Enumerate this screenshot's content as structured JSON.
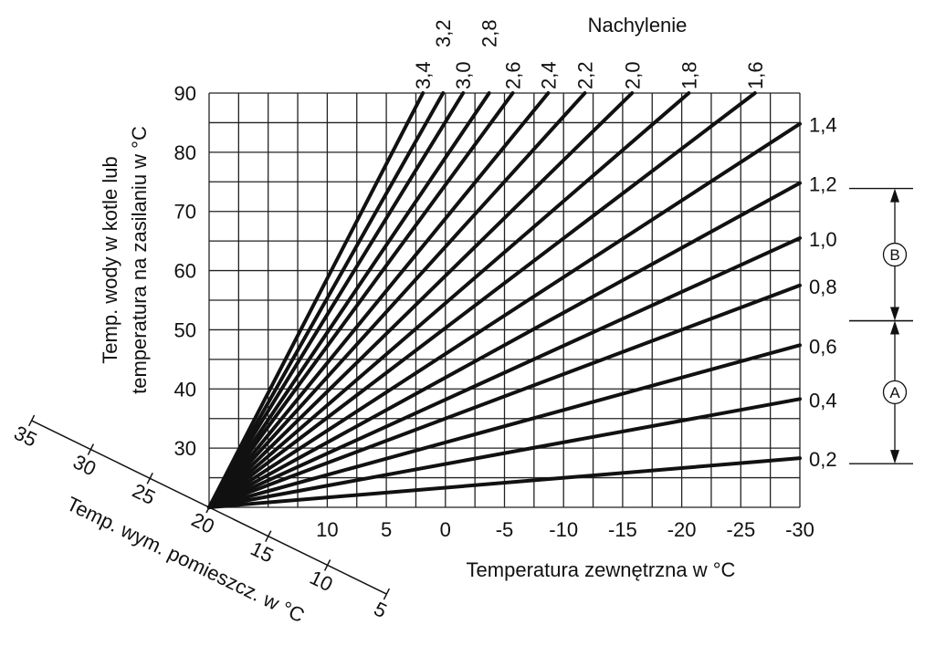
{
  "chart_data": {
    "type": "line",
    "title": "Nachylenie",
    "xlabel": "Temperatura zewnętrzna w °C",
    "ylabel_lines": [
      "Temp. wody w kotle lub",
      "temperatura na zasilaniu w °C"
    ],
    "room_axis_label": "Temp. wym. pomieszcz. w °C",
    "xlim": [
      20,
      -30
    ],
    "ylim": [
      20,
      90
    ],
    "grid": true,
    "x_ticks": [
      10,
      5,
      0,
      -5,
      -10,
      -15,
      -20,
      -25,
      -30
    ],
    "y_ticks": [
      90,
      80,
      70,
      60,
      50,
      40,
      30
    ],
    "room_ticks": [
      35,
      30,
      25,
      20,
      15,
      10,
      5
    ],
    "origin": {
      "x": 20,
      "y": 20
    },
    "series": [
      {
        "name": "0,2",
        "end": {
          "x": -30,
          "y": 28.3
        }
      },
      {
        "name": "0,4",
        "end": {
          "x": -30,
          "y": 38.3
        }
      },
      {
        "name": "0,6",
        "end": {
          "x": -30,
          "y": 47.4
        }
      },
      {
        "name": "0,8",
        "end": {
          "x": -30,
          "y": 57.5
        }
      },
      {
        "name": "1,0",
        "end": {
          "x": -30,
          "y": 65.5
        }
      },
      {
        "name": "1,2",
        "end": {
          "x": -30,
          "y": 74.8
        }
      },
      {
        "name": "1,4",
        "end": {
          "x": -30,
          "y": 84.8
        }
      },
      {
        "name": "1,6",
        "end": {
          "x": -26.2,
          "y": 90
        }
      },
      {
        "name": "1,8",
        "end": {
          "x": -20.6,
          "y": 90
        }
      },
      {
        "name": "2,0",
        "end": {
          "x": -15.8,
          "y": 90
        }
      },
      {
        "name": "2,2",
        "end": {
          "x": -11.8,
          "y": 90
        }
      },
      {
        "name": "2,4",
        "end": {
          "x": -8.7,
          "y": 90
        }
      },
      {
        "name": "2,6",
        "end": {
          "x": -5.7,
          "y": 90
        }
      },
      {
        "name": "2,8",
        "end": {
          "x": -3.7,
          "y": 90
        }
      },
      {
        "name": "3,0",
        "end": {
          "x": -1.5,
          "y": 90
        }
      },
      {
        "name": "3,2",
        "end": {
          "x": 0.2,
          "y": 90
        }
      },
      {
        "name": "3,4",
        "end": {
          "x": 1.9,
          "y": 90
        }
      }
    ],
    "ranges": [
      {
        "label": "A",
        "from_slope": 0.2,
        "to_slope": 0.7
      },
      {
        "label": "B",
        "from_slope": 0.7,
        "to_slope": 1.2
      }
    ],
    "line_color": "#111111",
    "grid_color": "#222222"
  }
}
